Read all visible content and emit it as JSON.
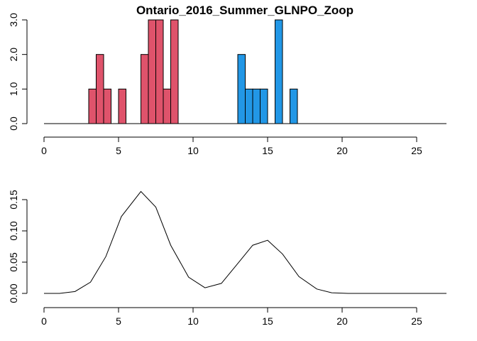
{
  "chart_data": [
    {
      "type": "bar",
      "title": "Ontario_2016_Summer_GLNPO_Zoop",
      "xlabel": "",
      "ylabel": "",
      "xlim": [
        0,
        27
      ],
      "ylim": [
        0,
        3
      ],
      "grid": false,
      "x_ticks": [
        0,
        5,
        10,
        15,
        20,
        25
      ],
      "x_tick_labels": [
        "0",
        "5",
        "10",
        "15",
        "20",
        "25"
      ],
      "y_ticks": [
        0,
        1,
        2,
        3
      ],
      "y_tick_labels": [
        "0.0",
        "1.0",
        "2.0",
        "3.0"
      ],
      "bin_width": 0.5,
      "baseline_x": [
        0,
        27
      ],
      "colors": {
        "group1": "#DF536B",
        "group2": "#2297E6",
        "outline": "#000000"
      },
      "series": [
        {
          "bins": [
            {
              "x0": 3.0,
              "value": 1
            },
            {
              "x0": 3.5,
              "value": 2
            },
            {
              "x0": 4.0,
              "value": 1
            },
            {
              "x0": 5.0,
              "value": 1
            },
            {
              "x0": 6.5,
              "value": 2
            },
            {
              "x0": 7.0,
              "value": 3
            },
            {
              "x0": 7.5,
              "value": 3
            },
            {
              "x0": 8.0,
              "value": 1
            },
            {
              "x0": 8.5,
              "value": 3
            }
          ]
        },
        {
          "bins": [
            {
              "x0": 13.0,
              "value": 2
            },
            {
              "x0": 13.5,
              "value": 1
            },
            {
              "x0": 14.0,
              "value": 1
            },
            {
              "x0": 14.5,
              "value": 1
            },
            {
              "x0": 15.5,
              "value": 3
            },
            {
              "x0": 16.5,
              "value": 1
            }
          ]
        }
      ]
    },
    {
      "type": "line",
      "title": "",
      "xlabel": "",
      "ylabel": "",
      "xlim": [
        0,
        27
      ],
      "ylim": [
        0,
        0.16
      ],
      "grid": false,
      "x_ticks": [
        0,
        5,
        10,
        15,
        20,
        25
      ],
      "x_tick_labels": [
        "0",
        "5",
        "10",
        "15",
        "20",
        "25"
      ],
      "y_ticks": [
        0,
        0.05,
        0.1,
        0.15
      ],
      "y_tick_labels": [
        "0.00",
        "0.05",
        "0.10",
        "0.15"
      ],
      "series": [
        {
          "x": [
            0,
            1.04,
            2.08,
            3.12,
            4.15,
            5.19,
            6.5,
            7.5,
            8.5,
            9.7,
            10.8,
            11.9,
            12.9,
            14.0,
            15.0,
            16.0,
            17.1,
            18.3,
            19.3,
            20.4,
            21.5,
            22.6,
            23.6,
            24.6,
            25.7,
            27.0
          ],
          "y": [
            0.0,
            0.0,
            0.003,
            0.018,
            0.059,
            0.123,
            0.163,
            0.138,
            0.077,
            0.026,
            0.009,
            0.016,
            0.045,
            0.077,
            0.085,
            0.063,
            0.027,
            0.007,
            0.001,
            0.0,
            0.0,
            0.0,
            0.0,
            0.0,
            0.0,
            0.0
          ],
          "color": "#000000"
        }
      ]
    }
  ]
}
